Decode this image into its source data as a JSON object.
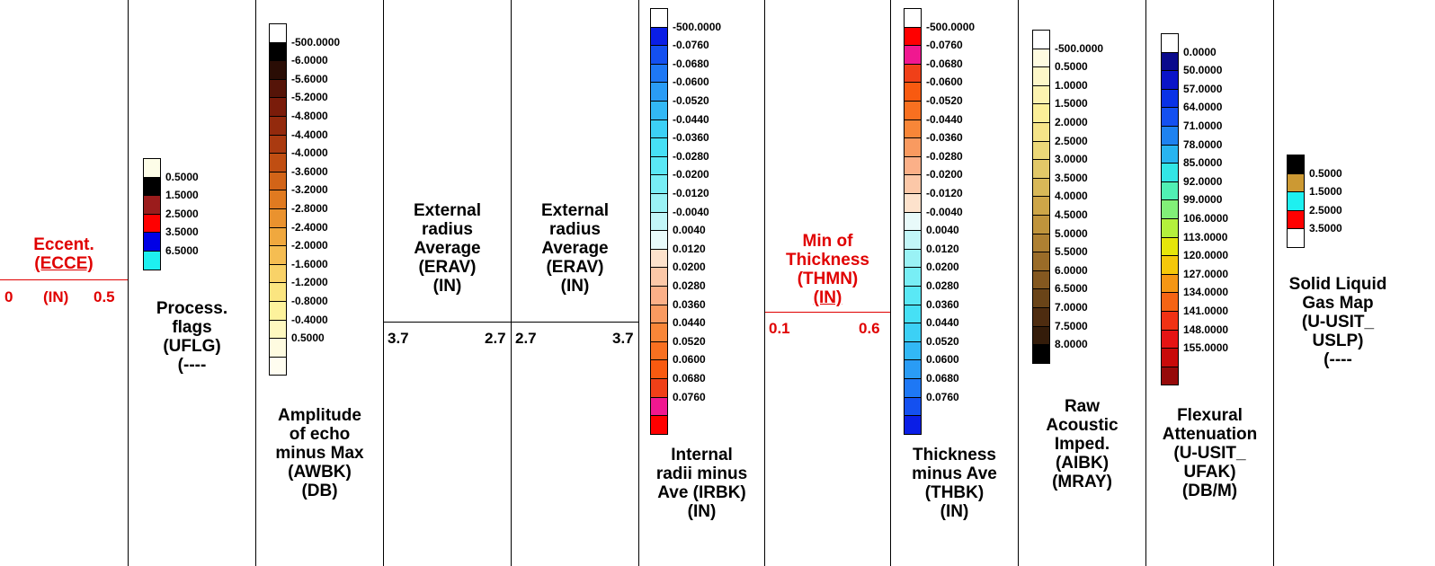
{
  "tracks": [
    {
      "id": "ecce",
      "title_lines": [
        "Eccent.",
        "(ECCE)"
      ],
      "title_color": "#e00000",
      "scale": {
        "left": "0",
        "mid": "(IN)",
        "right": "0.5",
        "color": "#e00000"
      }
    },
    {
      "id": "uflg",
      "title_lines": [
        "Process.",
        "flags",
        "(UFLG)",
        "(----"
      ],
      "legend": {
        "labels": [
          "0.5000",
          "1.5000",
          "2.5000",
          "3.5000",
          "6.5000"
        ],
        "colors": [
          "#fdfde8",
          "#000000",
          "#9b1c1c",
          "#ff0000",
          "#0000e6",
          "#1ef0f0"
        ]
      }
    },
    {
      "id": "awbk",
      "title_lines": [
        "Amplitude",
        "of echo",
        "minus Max",
        "(AWBK)",
        "(DB)"
      ],
      "legend": {
        "labels": [
          "-500.0000",
          "-6.0000",
          "-5.6000",
          "-5.2000",
          "-4.8000",
          "-4.4000",
          "-4.0000",
          "-3.6000",
          "-3.2000",
          "-2.8000",
          "-2.4000",
          "-2.0000",
          "-1.6000",
          "-1.2000",
          "-0.8000",
          "-0.4000",
          "0.5000"
        ],
        "colors": [
          "#ffffff",
          "#000000",
          "#2a0d05",
          "#551408",
          "#7a1c0a",
          "#932a0d",
          "#aa3a10",
          "#c04e12",
          "#d26418",
          "#e07a20",
          "#ea922e",
          "#f0a83e",
          "#f5bd52",
          "#f9d268",
          "#fbe580",
          "#fdf29c",
          "#fef8c0",
          "#fefbe0",
          "#fffdf0"
        ]
      }
    },
    {
      "id": "erav1",
      "title_lines": [
        "External",
        "radius",
        "Average",
        "(ERAV)",
        "(IN)"
      ],
      "scale": {
        "left": "3.7",
        "mid": "",
        "right": "2.7",
        "color": "#000000"
      }
    },
    {
      "id": "erav2",
      "title_lines": [
        "External",
        "radius",
        "Average",
        "(ERAV)",
        "(IN)"
      ],
      "scale": {
        "left": "2.7",
        "mid": "",
        "right": "3.7",
        "color": "#000000"
      }
    },
    {
      "id": "irbk",
      "title_lines": [
        "Internal",
        "radii minus",
        "Ave (IRBK)",
        "(IN)"
      ],
      "legend": {
        "labels": [
          "-500.0000",
          "-0.0760",
          "-0.0680",
          "-0.0600",
          "-0.0520",
          "-0.0440",
          "-0.0360",
          "-0.0280",
          "-0.0200",
          "-0.0120",
          "-0.0040",
          "0.0040",
          "0.0120",
          "0.0200",
          "0.0280",
          "0.0360",
          "0.0440",
          "0.0520",
          "0.0600",
          "0.0680",
          "0.0760"
        ],
        "colors": [
          "#ffffff",
          "#0a1ee6",
          "#1450f0",
          "#1e78f5",
          "#2a9cf5",
          "#32b8f5",
          "#3cd0f5",
          "#46e0f5",
          "#5ae8f5",
          "#78eef5",
          "#9af2f5",
          "#c2f6f8",
          "#e8fafa",
          "#fde2cc",
          "#fcc8a8",
          "#fbb088",
          "#f99a60",
          "#f88638",
          "#f87020",
          "#f85a10",
          "#f04018",
          "#f01890",
          "#ff0000"
        ]
      }
    },
    {
      "id": "thmn",
      "title_lines": [
        "Min of",
        "Thickness",
        "(THMN)",
        "(IN)"
      ],
      "title_color": "#e00000",
      "scale": {
        "left": "0.1",
        "mid": "",
        "right": "0.6",
        "color": "#e00000"
      }
    },
    {
      "id": "thbk",
      "title_lines": [
        "Thickness",
        "minus Ave",
        "(THBK)",
        "(IN)"
      ],
      "legend": {
        "labels": [
          "-500.0000",
          "-0.0760",
          "-0.0680",
          "-0.0600",
          "-0.0520",
          "-0.0440",
          "-0.0360",
          "-0.0280",
          "-0.0200",
          "-0.0120",
          "-0.0040",
          "0.0040",
          "0.0120",
          "0.0200",
          "0.0280",
          "0.0360",
          "0.0440",
          "0.0520",
          "0.0600",
          "0.0680",
          "0.0760"
        ],
        "colors": [
          "#ffffff",
          "#ff0000",
          "#f01890",
          "#f04018",
          "#f85a10",
          "#f87020",
          "#f88638",
          "#f99a60",
          "#fbb088",
          "#fcc8a8",
          "#fde2cc",
          "#e8fafa",
          "#c2f6f8",
          "#9af2f5",
          "#78eef5",
          "#5ae8f5",
          "#46e0f5",
          "#3cd0f5",
          "#32b8f5",
          "#2a9cf5",
          "#1e78f5",
          "#1450f0",
          "#0a1ee6"
        ]
      }
    },
    {
      "id": "aibk",
      "title_lines": [
        "Raw",
        "Acoustic",
        "Imped.",
        "(AIBK)",
        "(MRAY)"
      ],
      "legend": {
        "labels": [
          "-500.0000",
          "0.5000",
          "1.0000",
          "1.5000",
          "2.0000",
          "2.5000",
          "3.0000",
          "3.5000",
          "4.0000",
          "4.5000",
          "5.0000",
          "5.5000",
          "6.0000",
          "6.5000",
          "7.0000",
          "7.5000",
          "8.0000"
        ],
        "colors": [
          "#ffffff",
          "#fefbe0",
          "#fdf7c8",
          "#fcf3b0",
          "#fbef98",
          "#f5e488",
          "#ecd878",
          "#e2c868",
          "#d8b858",
          "#cea648",
          "#c0943c",
          "#ae8032",
          "#9a6c28",
          "#845820",
          "#6a4418",
          "#4e2c10",
          "#341c0a",
          "#000000"
        ]
      }
    },
    {
      "id": "ufak",
      "title_lines": [
        "Flexural",
        "Attenuation",
        "(U-USIT_",
        "UFAK)",
        "(DB/M)"
      ],
      "legend": {
        "labels": [
          "0.0000",
          "50.0000",
          "57.0000",
          "64.0000",
          "71.0000",
          "78.0000",
          "85.0000",
          "92.0000",
          "99.0000",
          "106.0000",
          "113.0000",
          "120.0000",
          "127.0000",
          "134.0000",
          "141.0000",
          "148.0000",
          "155.0000"
        ],
        "colors": [
          "#ffffff",
          "#0a0a8c",
          "#0a14c8",
          "#0a32e6",
          "#1450f0",
          "#1e82f0",
          "#28b4f0",
          "#32e6e6",
          "#50f0b4",
          "#82f078",
          "#b4f03c",
          "#e6e60a",
          "#f5c80a",
          "#f59614",
          "#f56414",
          "#f03214",
          "#e61414",
          "#c80a0a",
          "#960a0a"
        ]
      }
    },
    {
      "id": "uslp",
      "title_lines": [
        "Solid Liquid",
        "Gas Map",
        "(U-USIT_",
        "USLP)",
        "(----"
      ],
      "legend": {
        "labels": [
          "0.5000",
          "1.5000",
          "2.5000",
          "3.5000"
        ],
        "colors": [
          "#000000",
          "#cc9933",
          "#1ef0f0",
          "#ff0000",
          "#ffffff"
        ]
      }
    }
  ]
}
